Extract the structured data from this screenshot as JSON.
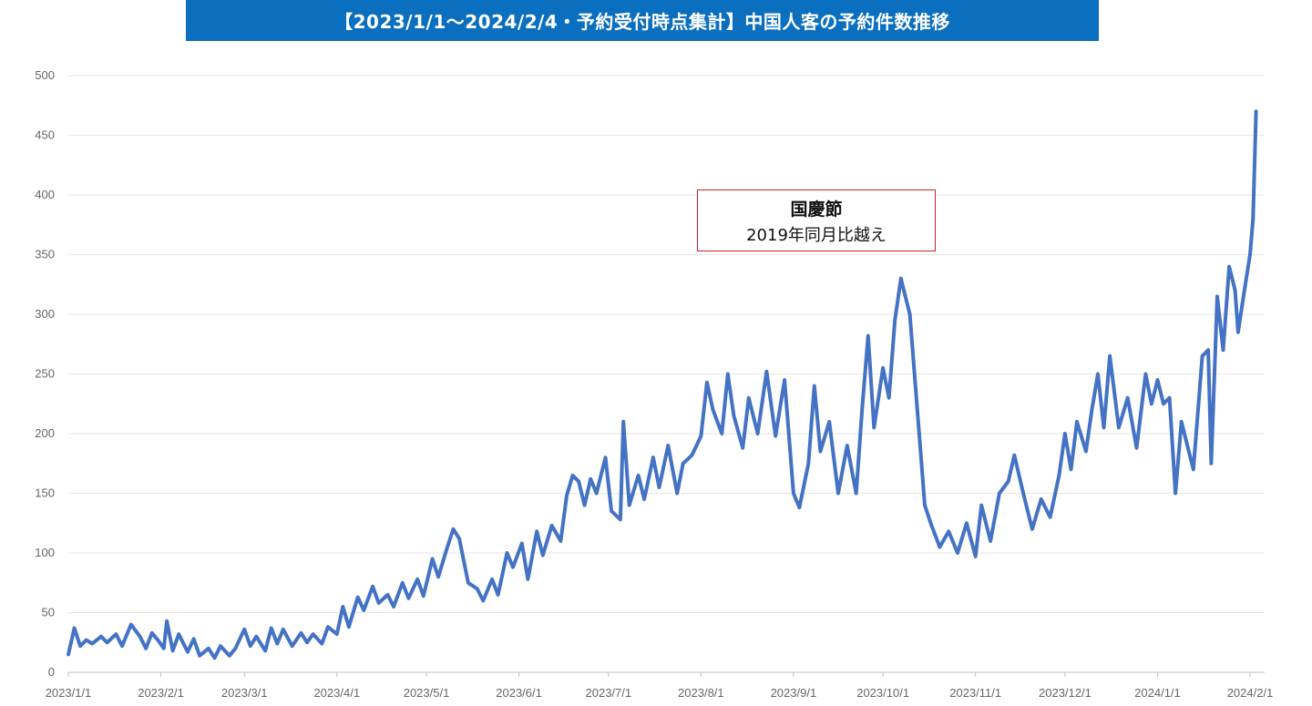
{
  "chart_data": {
    "type": "line",
    "title": "【2023/1/1～2024/2/4・予約受付時点集計】中国人客の予約件数推移",
    "x_tick_labels": [
      "2023/1/1",
      "2023/2/1",
      "2023/3/1",
      "2023/4/1",
      "2023/5/1",
      "2023/6/1",
      "2023/7/1",
      "2023/8/1",
      "2023/9/1",
      "2023/10/1",
      "2023/11/1",
      "2023/12/1",
      "2024/1/1",
      "2024/2/1"
    ],
    "x_start": "2023/1/1",
    "x_end": "2024/2/4",
    "ylim": [
      0,
      500
    ],
    "y_ticks": [
      0,
      50,
      100,
      150,
      200,
      250,
      300,
      350,
      400,
      450,
      500
    ],
    "grid": true,
    "line_color": "#4472c4",
    "annotation": {
      "title": "国慶節",
      "subtitle": "2019年同月比越え",
      "border_color": "#d02020"
    },
    "series": [
      {
        "values": [
          [
            "2023/1/1",
            15
          ],
          [
            "2023/1/3",
            37
          ],
          [
            "2023/1/5",
            22
          ],
          [
            "2023/1/7",
            27
          ],
          [
            "2023/1/9",
            24
          ],
          [
            "2023/1/12",
            30
          ],
          [
            "2023/1/14",
            25
          ],
          [
            "2023/1/17",
            32
          ],
          [
            "2023/1/19",
            22
          ],
          [
            "2023/1/22",
            40
          ],
          [
            "2023/1/25",
            30
          ],
          [
            "2023/1/27",
            20
          ],
          [
            "2023/1/29",
            33
          ],
          [
            "2023/1/31",
            27
          ],
          [
            "2023/2/2",
            20
          ],
          [
            "2023/2/3",
            43
          ],
          [
            "2023/2/5",
            18
          ],
          [
            "2023/2/7",
            32
          ],
          [
            "2023/2/10",
            17
          ],
          [
            "2023/2/12",
            28
          ],
          [
            "2023/2/14",
            14
          ],
          [
            "2023/2/17",
            20
          ],
          [
            "2023/2/19",
            12
          ],
          [
            "2023/2/21",
            22
          ],
          [
            "2023/2/24",
            14
          ],
          [
            "2023/2/26",
            20
          ],
          [
            "2023/3/1",
            36
          ],
          [
            "2023/3/3",
            22
          ],
          [
            "2023/3/5",
            30
          ],
          [
            "2023/3/8",
            18
          ],
          [
            "2023/3/10",
            37
          ],
          [
            "2023/3/12",
            24
          ],
          [
            "2023/3/14",
            36
          ],
          [
            "2023/3/17",
            22
          ],
          [
            "2023/3/20",
            33
          ],
          [
            "2023/3/22",
            25
          ],
          [
            "2023/3/24",
            32
          ],
          [
            "2023/3/27",
            24
          ],
          [
            "2023/3/29",
            38
          ],
          [
            "2023/4/1",
            32
          ],
          [
            "2023/4/3",
            55
          ],
          [
            "2023/4/5",
            38
          ],
          [
            "2023/4/8",
            63
          ],
          [
            "2023/4/10",
            52
          ],
          [
            "2023/4/13",
            72
          ],
          [
            "2023/4/15",
            58
          ],
          [
            "2023/4/18",
            65
          ],
          [
            "2023/4/20",
            55
          ],
          [
            "2023/4/23",
            75
          ],
          [
            "2023/4/25",
            62
          ],
          [
            "2023/4/28",
            78
          ],
          [
            "2023/4/30",
            64
          ],
          [
            "2023/5/3",
            95
          ],
          [
            "2023/5/5",
            80
          ],
          [
            "2023/5/8",
            105
          ],
          [
            "2023/5/10",
            120
          ],
          [
            "2023/5/12",
            112
          ],
          [
            "2023/5/15",
            75
          ],
          [
            "2023/5/18",
            70
          ],
          [
            "2023/5/20",
            60
          ],
          [
            "2023/5/23",
            78
          ],
          [
            "2023/5/25",
            65
          ],
          [
            "2023/5/28",
            100
          ],
          [
            "2023/5/30",
            88
          ],
          [
            "2023/6/2",
            108
          ],
          [
            "2023/6/4",
            78
          ],
          [
            "2023/6/7",
            118
          ],
          [
            "2023/6/9",
            98
          ],
          [
            "2023/6/12",
            123
          ],
          [
            "2023/6/15",
            110
          ],
          [
            "2023/6/17",
            148
          ],
          [
            "2023/6/19",
            165
          ],
          [
            "2023/6/21",
            160
          ],
          [
            "2023/6/23",
            140
          ],
          [
            "2023/6/25",
            162
          ],
          [
            "2023/6/27",
            150
          ],
          [
            "2023/6/30",
            180
          ],
          [
            "2023/7/2",
            135
          ],
          [
            "2023/7/5",
            128
          ],
          [
            "2023/7/6",
            210
          ],
          [
            "2023/7/8",
            140
          ],
          [
            "2023/7/11",
            165
          ],
          [
            "2023/7/13",
            145
          ],
          [
            "2023/7/16",
            180
          ],
          [
            "2023/7/18",
            155
          ],
          [
            "2023/7/21",
            190
          ],
          [
            "2023/7/24",
            150
          ],
          [
            "2023/7/26",
            175
          ],
          [
            "2023/7/29",
            182
          ],
          [
            "2023/8/1",
            198
          ],
          [
            "2023/8/3",
            243
          ],
          [
            "2023/8/5",
            220
          ],
          [
            "2023/8/8",
            200
          ],
          [
            "2023/8/10",
            250
          ],
          [
            "2023/8/12",
            215
          ],
          [
            "2023/8/15",
            188
          ],
          [
            "2023/8/17",
            230
          ],
          [
            "2023/8/20",
            200
          ],
          [
            "2023/8/23",
            252
          ],
          [
            "2023/8/26",
            198
          ],
          [
            "2023/8/29",
            245
          ],
          [
            "2023/9/1",
            150
          ],
          [
            "2023/9/3",
            138
          ],
          [
            "2023/9/6",
            175
          ],
          [
            "2023/9/8",
            240
          ],
          [
            "2023/9/10",
            185
          ],
          [
            "2023/9/13",
            210
          ],
          [
            "2023/9/16",
            150
          ],
          [
            "2023/9/19",
            190
          ],
          [
            "2023/9/22",
            150
          ],
          [
            "2023/9/24",
            220
          ],
          [
            "2023/9/26",
            282
          ],
          [
            "2023/9/28",
            205
          ],
          [
            "2023/10/1",
            255
          ],
          [
            "2023/10/3",
            230
          ],
          [
            "2023/10/5",
            295
          ],
          [
            "2023/10/7",
            330
          ],
          [
            "2023/10/10",
            300
          ],
          [
            "2023/10/15",
            140
          ],
          [
            "2023/10/17",
            125
          ],
          [
            "2023/10/20",
            105
          ],
          [
            "2023/10/23",
            118
          ],
          [
            "2023/10/26",
            100
          ],
          [
            "2023/10/29",
            125
          ],
          [
            "2023/11/1",
            97
          ],
          [
            "2023/11/3",
            140
          ],
          [
            "2023/11/6",
            110
          ],
          [
            "2023/11/9",
            150
          ],
          [
            "2023/11/12",
            160
          ],
          [
            "2023/11/14",
            182
          ],
          [
            "2023/11/17",
            150
          ],
          [
            "2023/11/20",
            120
          ],
          [
            "2023/11/23",
            145
          ],
          [
            "2023/11/26",
            130
          ],
          [
            "2023/11/29",
            165
          ],
          [
            "2023/12/1",
            200
          ],
          [
            "2023/12/3",
            170
          ],
          [
            "2023/12/5",
            210
          ],
          [
            "2023/12/8",
            185
          ],
          [
            "2023/12/10",
            220
          ],
          [
            "2023/12/12",
            250
          ],
          [
            "2023/12/14",
            205
          ],
          [
            "2023/12/16",
            265
          ],
          [
            "2023/12/19",
            205
          ],
          [
            "2023/12/22",
            230
          ],
          [
            "2023/12/25",
            188
          ],
          [
            "2023/12/28",
            250
          ],
          [
            "2023/12/30",
            225
          ],
          [
            "2024/1/1",
            245
          ],
          [
            "2024/1/3",
            225
          ],
          [
            "2024/1/5",
            230
          ],
          [
            "2024/1/7",
            150
          ],
          [
            "2024/1/9",
            210
          ],
          [
            "2024/1/11",
            190
          ],
          [
            "2024/1/13",
            170
          ],
          [
            "2024/1/16",
            265
          ],
          [
            "2024/1/18",
            270
          ],
          [
            "2024/1/19",
            175
          ],
          [
            "2024/1/21",
            315
          ],
          [
            "2024/1/23",
            270
          ],
          [
            "2024/1/25",
            340
          ],
          [
            "2024/1/27",
            320
          ],
          [
            "2024/1/28",
            285
          ],
          [
            "2024/1/30",
            318
          ],
          [
            "2024/2/1",
            350
          ],
          [
            "2024/2/2",
            380
          ],
          [
            "2024/2/3",
            470
          ]
        ]
      }
    ]
  }
}
